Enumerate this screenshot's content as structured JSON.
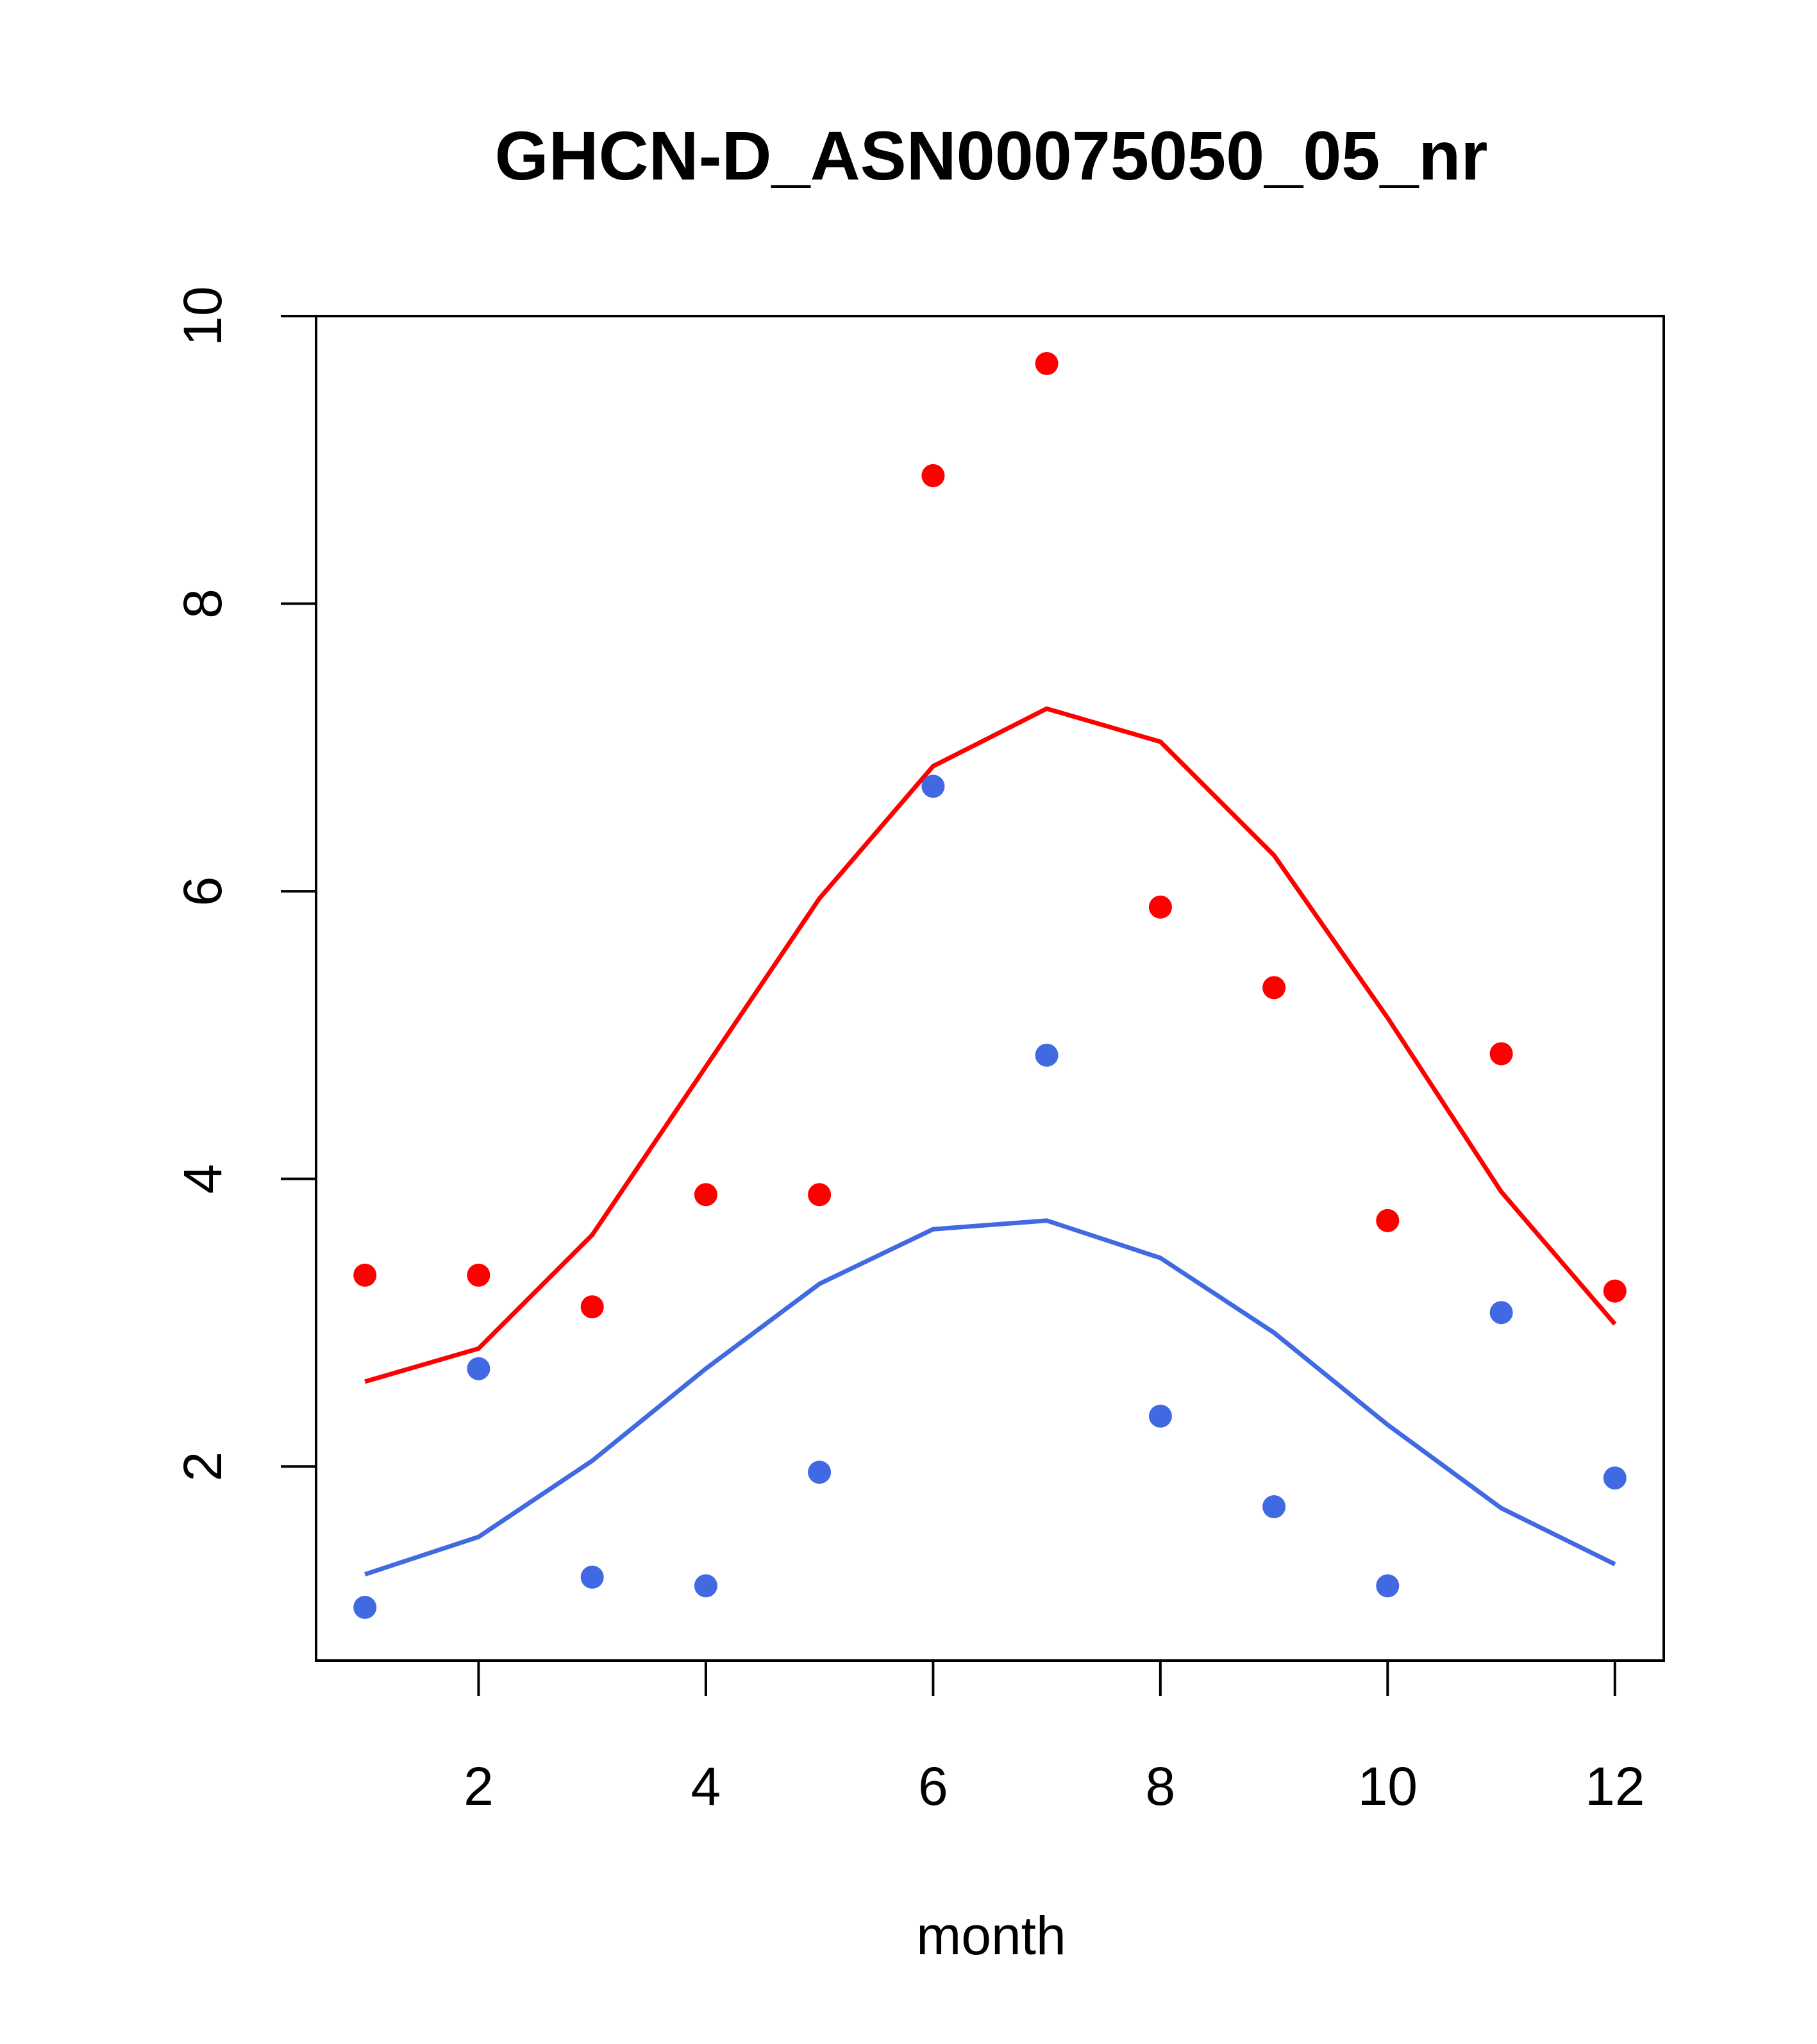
{
  "chart_data": {
    "type": "scatter",
    "title": "GHCN-D_ASN00075050_05_nr",
    "xlabel": "month",
    "ylabel": "",
    "xlim": [
      0.57,
      12.43
    ],
    "ylim": [
      0.65,
      10.0
    ],
    "x_ticks": [
      "2",
      "4",
      "6",
      "8",
      "10",
      "12"
    ],
    "y_ticks": [
      "2",
      "4",
      "6",
      "8",
      "10"
    ],
    "x": [
      1,
      2,
      3,
      4,
      5,
      6,
      7,
      8,
      9,
      10,
      11,
      12
    ],
    "series": [
      {
        "color": "#ff0000",
        "points": [
          3.33,
          3.33,
          3.11,
          3.89,
          3.89,
          8.89,
          9.67,
          5.89,
          5.33,
          3.71,
          4.87,
          3.22
        ],
        "line": [
          2.59,
          2.82,
          3.61,
          4.78,
          5.95,
          6.87,
          7.27,
          7.04,
          6.25,
          5.12,
          3.91,
          2.99
        ]
      },
      {
        "color": "#4169e1",
        "points": [
          1.02,
          2.68,
          1.23,
          1.17,
          1.96,
          6.73,
          4.86,
          2.35,
          1.72,
          1.17,
          3.07,
          1.92
        ],
        "line": [
          1.25,
          1.51,
          2.04,
          2.68,
          3.27,
          3.65,
          3.71,
          3.45,
          2.93,
          2.29,
          1.71,
          1.32
        ]
      }
    ],
    "grid": false,
    "legend": "none"
  }
}
